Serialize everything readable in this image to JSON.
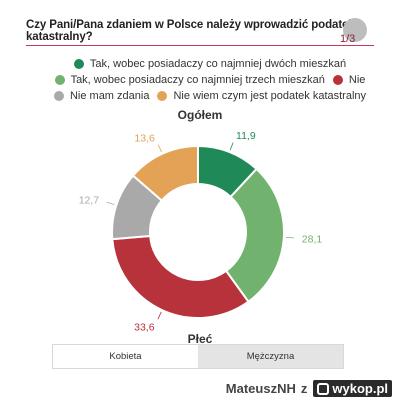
{
  "header": {
    "question": "Czy Pani/Pana zdaniem w Polsce należy wprowadzić podatek katastralny?",
    "page_counter": "1/3"
  },
  "legend": [
    {
      "label": "Tak, wobec posiadaczy co najmniej dwóch mieszkań",
      "color": "#1f8a58"
    },
    {
      "label": "Tak, wobec posiadaczy co najmniej trzech mieszkań",
      "color": "#72b26f"
    },
    {
      "label": "Nie",
      "color": "#b8323b"
    },
    {
      "label": "Nie mam zdania",
      "color": "#a9a9a9"
    },
    {
      "label": "Nie wiem czym jest podatek katastralny",
      "color": "#e3a256"
    }
  ],
  "chart_data": {
    "type": "pie",
    "title": "Ogółem",
    "donut": true,
    "categories": [
      "Tak, wobec posiadaczy co najmniej dwóch mieszkań",
      "Tak, wobec posiadaczy co najmniej trzech mieszkań",
      "Nie",
      "Nie mam zdania",
      "Nie wiem czym jest podatek katastralny"
    ],
    "values": [
      11.9,
      28.1,
      33.6,
      12.7,
      13.6
    ],
    "value_labels": [
      "11,9",
      "28,1",
      "33,6",
      "12,7",
      "13,6"
    ],
    "colors": [
      "#1f8a58",
      "#72b26f",
      "#b8323b",
      "#a9a9a9",
      "#e3a256"
    ],
    "start": "top, clockwise"
  },
  "section": {
    "title": "Płeć",
    "tabs": [
      {
        "label": "Kobieta",
        "active": true
      },
      {
        "label": "Mężczyzna",
        "active": false
      }
    ]
  },
  "footer": {
    "user": "MateuszNH",
    "joiner": "z",
    "site": "wykop.pl"
  }
}
